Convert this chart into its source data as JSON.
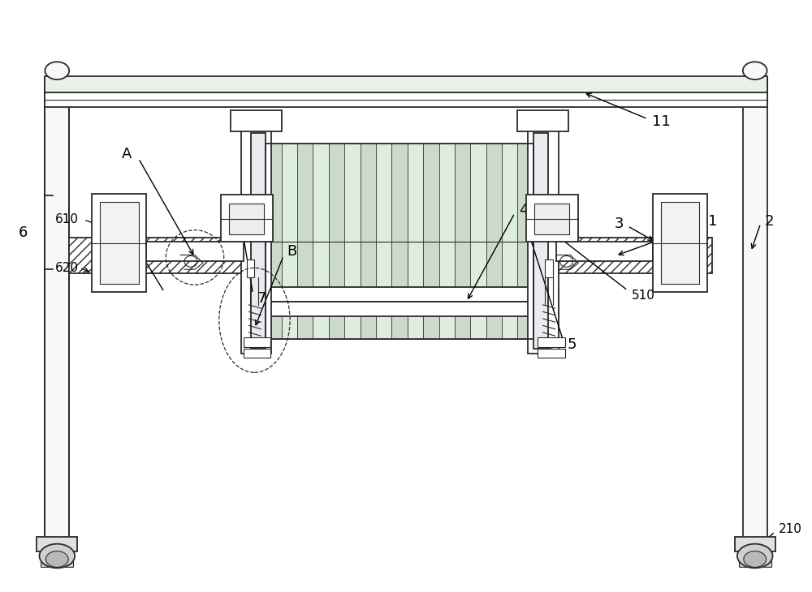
{
  "bg_color": "#ffffff",
  "line_color": "#2a2a2a",
  "figsize": [
    10.0,
    7.3
  ],
  "coil_colors": [
    "#ccdacc",
    "#ddeedd"
  ],
  "hatch_fc": "#ffffff",
  "pole_fc": "#f5f5f5",
  "beam_fc": "#ffffff",
  "green_bar_fc": "#e8f2e8",
  "wheel_fc": "#d8d8d8",
  "block_fc": "#eeeeee"
}
